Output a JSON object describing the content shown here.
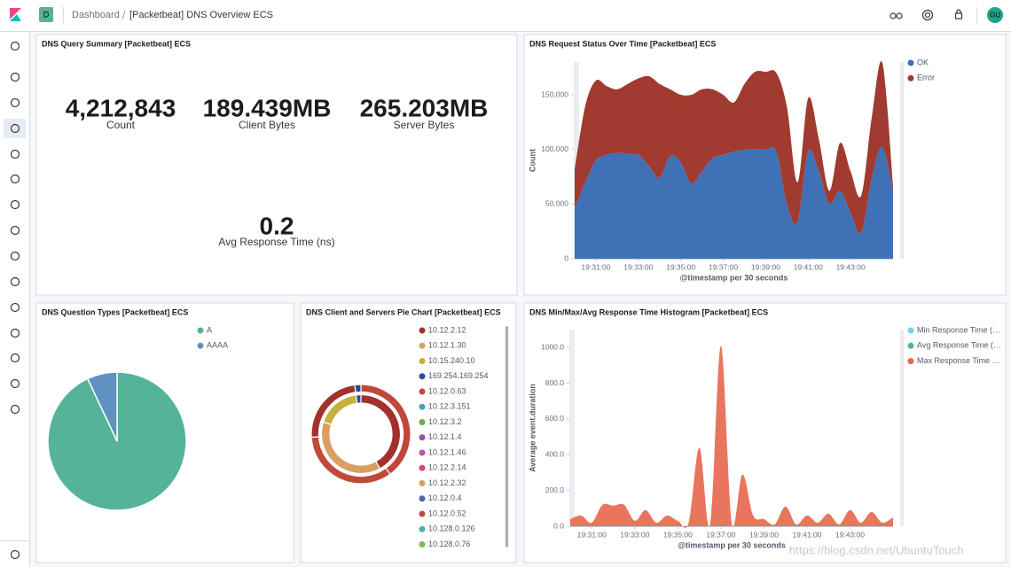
{
  "header": {
    "badge": "D",
    "breadcrumbs": [
      "Dashboard",
      "[Packetbeat] DNS Overview ECS"
    ],
    "avatar": "GU"
  },
  "panels": [
    {
      "title": "DNS Query Summary [Packetbeat] ECS",
      "metrics": [
        {
          "value": "4,212,843",
          "label": "Count"
        },
        {
          "value": "189.439MB",
          "label": "Client Bytes"
        },
        {
          "value": "265.203MB",
          "label": "Server Bytes"
        },
        {
          "value": "0.2",
          "label": "Avg Response Time (ns)"
        }
      ]
    },
    {
      "title": "DNS Request Status Over Time [Packetbeat] ECS",
      "chart_data": {
        "type": "area",
        "stacked": true,
        "grid": false,
        "legend": "right",
        "x": [
          "19:30:00",
          "19:30:30",
          "19:31:00",
          "19:31:30",
          "19:32:00",
          "19:32:30",
          "19:33:00",
          "19:33:30",
          "19:34:00",
          "19:34:30",
          "19:35:00",
          "19:35:30",
          "19:36:00",
          "19:36:30",
          "19:37:00",
          "19:37:30",
          "19:38:00",
          "19:38:30",
          "19:39:00",
          "19:39:30",
          "19:40:00",
          "19:40:30",
          "19:41:00",
          "19:41:30",
          "19:42:00",
          "19:42:30",
          "19:43:00",
          "19:43:30",
          "19:44:00",
          "19:44:30",
          "19:45:00"
        ],
        "xticks": [
          "19:31:00",
          "19:33:00",
          "19:35:00",
          "19:37:00",
          "19:39:00",
          "19:41:00",
          "19:43:00"
        ],
        "xlabel": "@timestamp per 30 seconds",
        "ylabel": "Count",
        "ylim": [
          0,
          180000
        ],
        "yticks": [
          0,
          {
            "value": 50000,
            "label": "50,000"
          },
          {
            "value": 100000,
            "label": "100,000"
          },
          {
            "value": 150000,
            "label": "150,000"
          }
        ],
        "series": [
          {
            "name": "OK",
            "color": "#3f71b7",
            "values": [
              46000,
              70000,
              90000,
              95000,
              97000,
              96000,
              95000,
              85000,
              74000,
              94000,
              88000,
              69000,
              80000,
              92000,
              95000,
              98000,
              100000,
              100000,
              100000,
              98000,
              50000,
              34000,
              98000,
              80000,
              50000,
              62000,
              42000,
              24000,
              74000,
              102000,
              62000
            ]
          },
          {
            "name": "Error",
            "color": "#a13a2f",
            "values": [
              36000,
              70000,
              73000,
              63000,
              58000,
              64000,
              70000,
              82000,
              86000,
              61000,
              62000,
              81000,
              75000,
              63000,
              55000,
              45000,
              60000,
              71000,
              71000,
              72000,
              89000,
              36000,
              49000,
              30000,
              12000,
              44000,
              38000,
              34000,
              56000,
              77000,
              4000
            ]
          }
        ]
      }
    },
    {
      "title": "DNS Question Types [Packetbeat] ECS",
      "chart_data": {
        "type": "pie",
        "legend": "right",
        "categories": [
          "A",
          "AAAA"
        ],
        "values": [
          93,
          7
        ],
        "colors": [
          "#54b399",
          "#6092c0"
        ]
      }
    },
    {
      "title": "DNS Client and Servers Pie Chart [Packetbeat] ECS",
      "chart_data": {
        "type": "donut",
        "legend": "right",
        "legend_items": [
          {
            "label": "10.12.2.12",
            "color": "#a3302d"
          },
          {
            "label": "10.12.1.30",
            "color": "#d9a064"
          },
          {
            "label": "10.15.240.10",
            "color": "#c3b13b"
          },
          {
            "label": "169.254.169.254",
            "color": "#2b4c9b"
          },
          {
            "label": "10.12.0.63",
            "color": "#c2473b"
          },
          {
            "label": "10.12.3.151",
            "color": "#47a4b8"
          },
          {
            "label": "10.12.3.2",
            "color": "#6aae4a"
          },
          {
            "label": "10.12.1.4",
            "color": "#9e4fb0"
          },
          {
            "label": "10.12.1.46",
            "color": "#c24fb6"
          },
          {
            "label": "10.12.2.14",
            "color": "#de4479"
          },
          {
            "label": "10.12.2.32",
            "color": "#d4a35a"
          },
          {
            "label": "10.12.0.4",
            "color": "#4d68ae"
          },
          {
            "label": "10.12.0.52",
            "color": "#bf4a3c"
          },
          {
            "label": "10.128.0.126",
            "color": "#4ab2a6"
          },
          {
            "label": "10.128.0.76",
            "color": "#7bbd4b"
          }
        ],
        "rings": [
          {
            "labels": [
              "10.12.2.12",
              "10.12.1.30",
              "10.15.240.10",
              "169.254.169.254"
            ],
            "values": [
              42,
              38,
              18,
              2
            ]
          },
          {
            "labels": [
              "10.12.0.63",
              "10.12.0.52",
              "10.12.2.12",
              "169.254.169.254"
            ],
            "values": [
              40,
              34,
              24,
              2
            ]
          }
        ]
      }
    },
    {
      "title": "DNS Min/Max/Avg Response Time Histogram [Packetbeat] ECS",
      "chart_data": {
        "type": "area",
        "stacked": false,
        "grid": false,
        "legend": "right",
        "x": [
          "19:30:00",
          "19:30:30",
          "19:31:00",
          "19:31:30",
          "19:32:00",
          "19:32:30",
          "19:33:00",
          "19:33:30",
          "19:34:00",
          "19:34:30",
          "19:35:00",
          "19:35:30",
          "19:36:00",
          "19:36:30",
          "19:37:00",
          "19:37:30",
          "19:38:00",
          "19:38:30",
          "19:39:00",
          "19:39:30",
          "19:40:00",
          "19:40:30",
          "19:41:00",
          "19:41:30",
          "19:42:00",
          "19:42:30",
          "19:43:00",
          "19:43:30",
          "19:44:00",
          "19:44:30",
          "19:45:00"
        ],
        "xticks": [
          "19:31:00",
          "19:33:00",
          "19:35:00",
          "19:37:00",
          "19:39:00",
          "19:41:00",
          "19:43:00"
        ],
        "xlabel": "@timestamp per 30 seconds",
        "ylabel": "Average event.duration",
        "ylim": [
          0,
          1100
        ],
        "yticks": [
          {
            "value": 0,
            "label": "0.0"
          },
          {
            "value": 200,
            "label": "200.0"
          },
          {
            "value": 400,
            "label": "400.0"
          },
          {
            "value": 600,
            "label": "600.0"
          },
          {
            "value": 800,
            "label": "800.0"
          },
          {
            "value": 1000,
            "label": "1000.0"
          }
        ],
        "series": [
          {
            "name": "Min Response Time (…",
            "color": "#79d2e6",
            "values": [
              0,
              0,
              0,
              0,
              0,
              0,
              0,
              0,
              0,
              0,
              0,
              0,
              0,
              0,
              0,
              0,
              0,
              0,
              0,
              0,
              0,
              0,
              0,
              0,
              0,
              0,
              0,
              0,
              0,
              0,
              0
            ]
          },
          {
            "name": "Avg Response Time (…",
            "color": "#54b399",
            "values": [
              0,
              0,
              0,
              0,
              0,
              0,
              0,
              0,
              0,
              0,
              0,
              0,
              0,
              0,
              0,
              0,
              0,
              0,
              0,
              0,
              0,
              0,
              0,
              0,
              0,
              0,
              0,
              0,
              0,
              0,
              0
            ]
          },
          {
            "name": "Max Response Time …",
            "color": "#e7664c",
            "values": [
              40,
              60,
              20,
              120,
              115,
              120,
              30,
              90,
              20,
              60,
              30,
              20,
              440,
              10,
              1010,
              20,
              290,
              60,
              40,
              10,
              110,
              10,
              60,
              20,
              70,
              10,
              90,
              20,
              80,
              20,
              50
            ]
          }
        ]
      }
    }
  ],
  "watermark": "https://blog.csdn.net/UbuntuTouch"
}
